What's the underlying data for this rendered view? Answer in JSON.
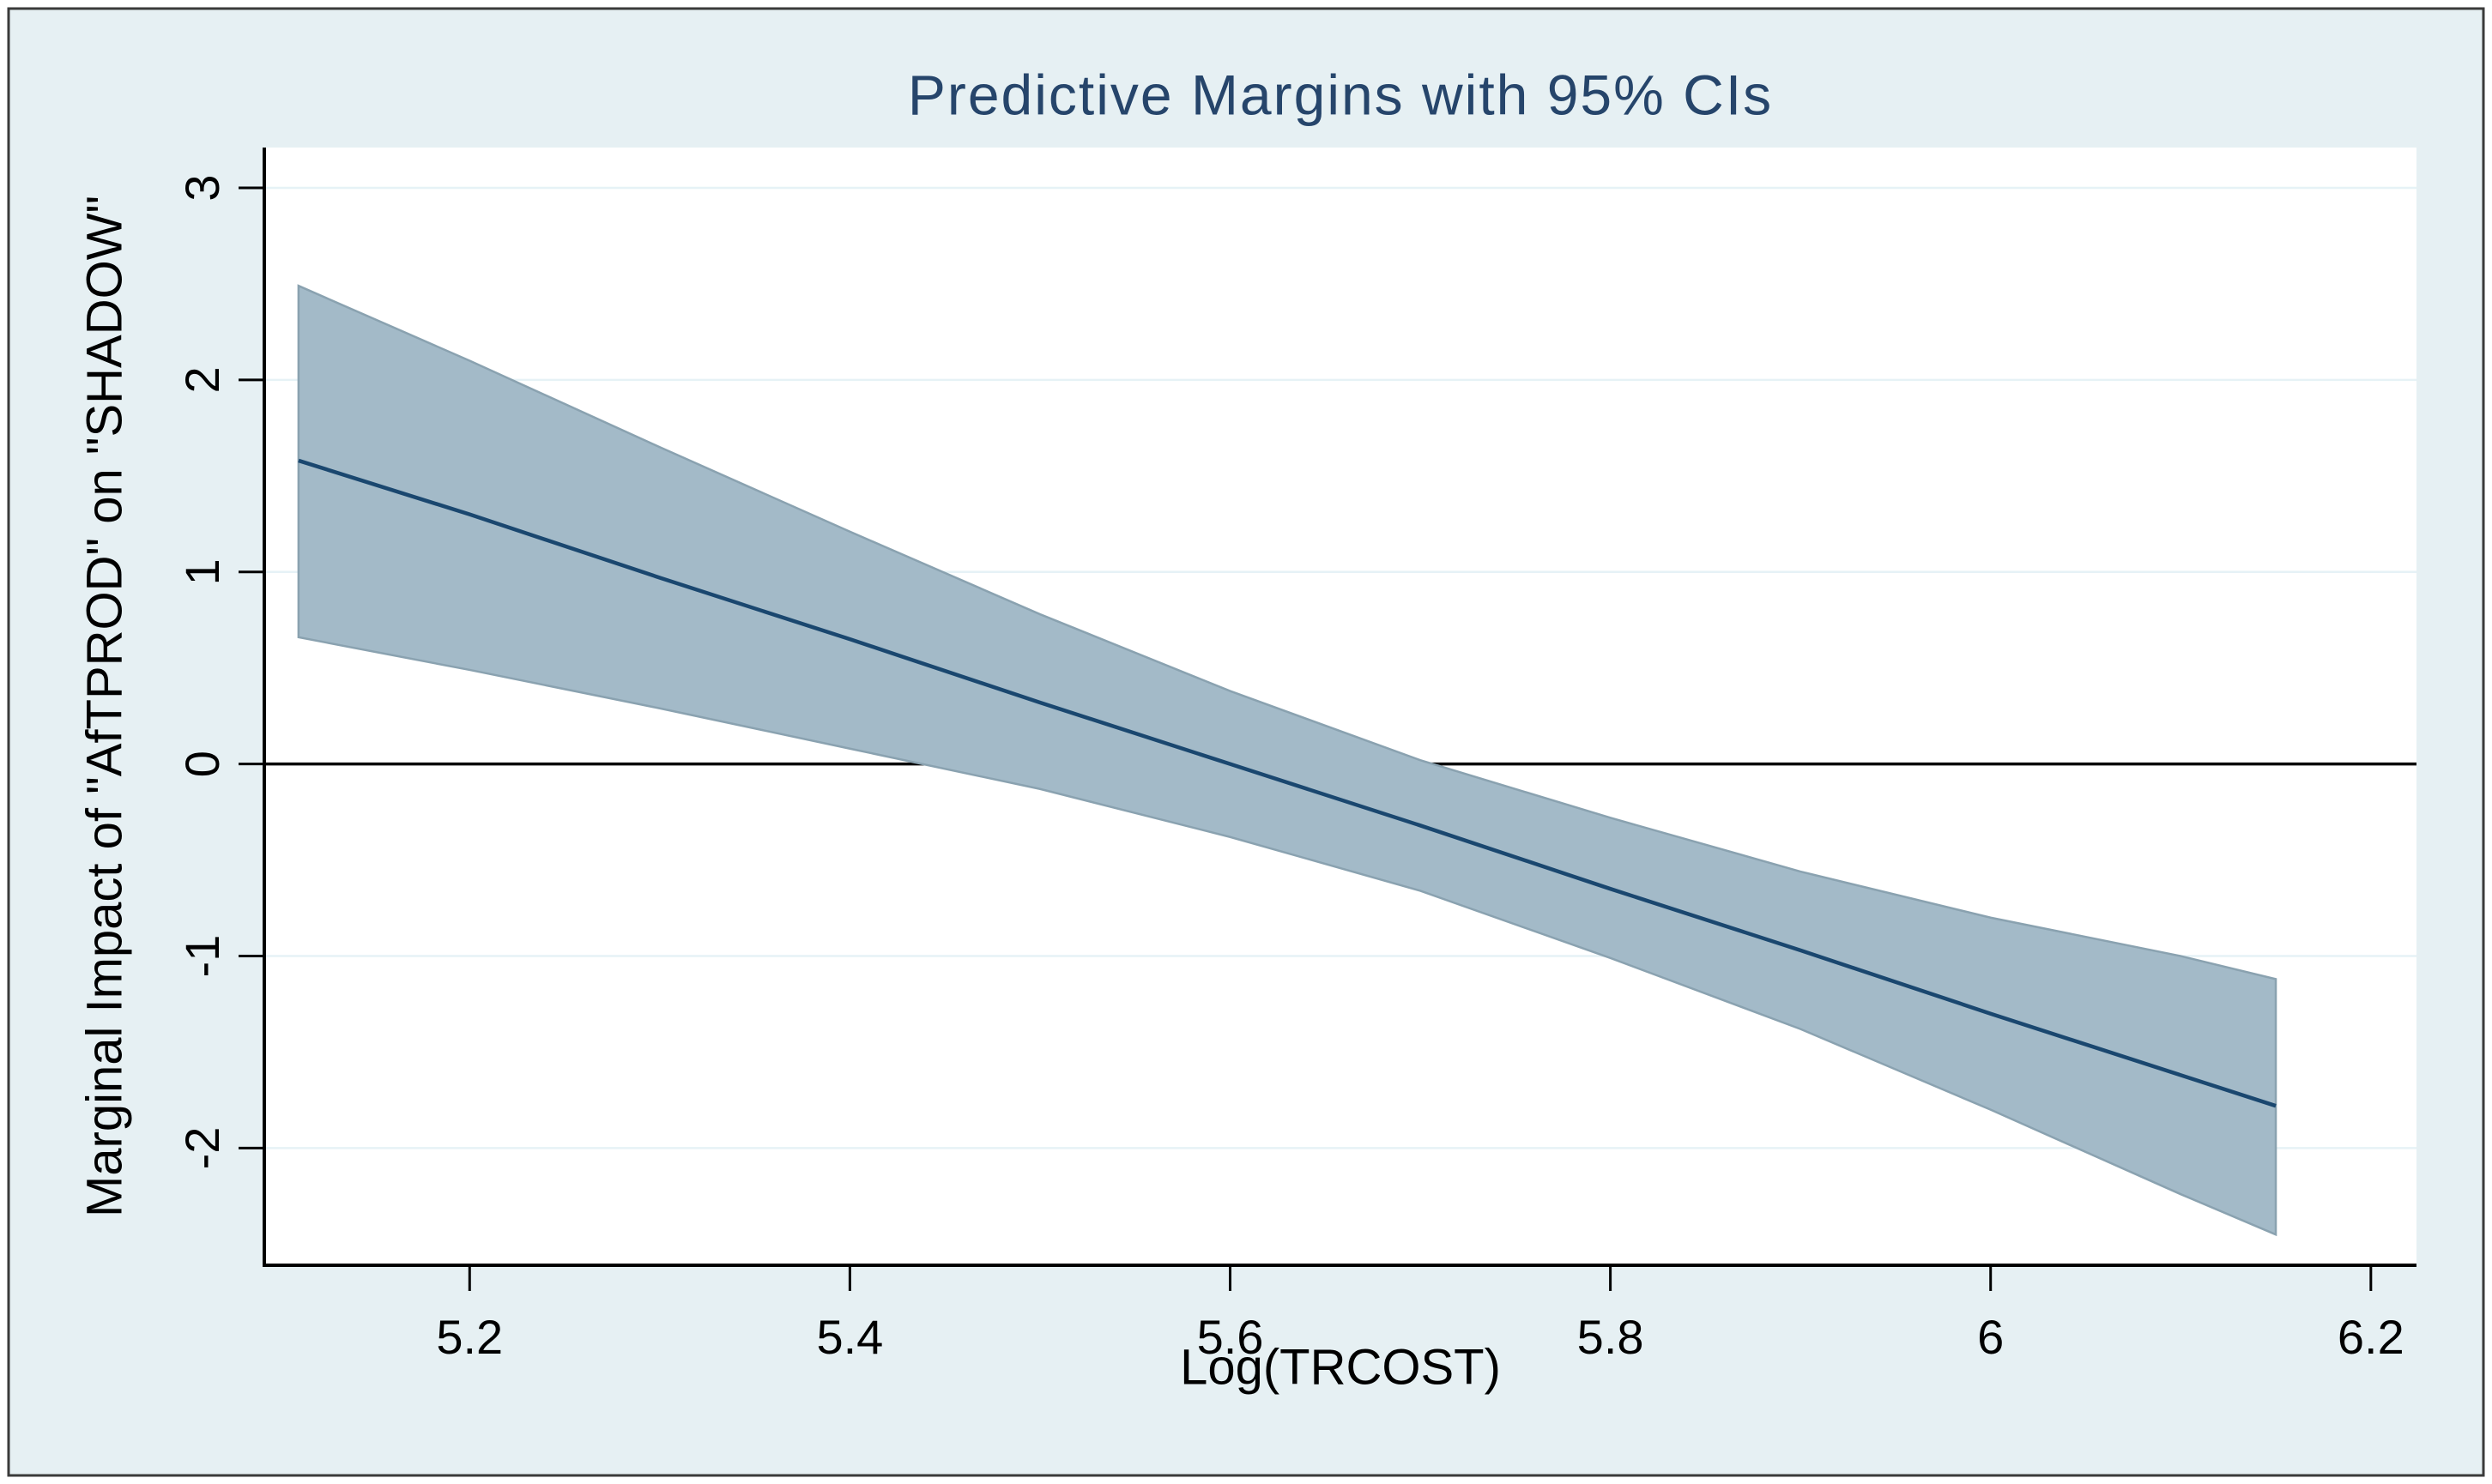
{
  "chart_data": {
    "type": "line",
    "title": "Predictive Margins with 95% CIs",
    "xlabel": "Log(TRCOST)",
    "ylabel": "Marginal Impact of \"AfTPROD\" on \"SHADOW\"",
    "x": [
      5.11,
      5.2,
      5.3,
      5.4,
      5.5,
      5.6,
      5.7,
      5.8,
      5.9,
      6.0,
      6.1,
      6.15
    ],
    "series": [
      {
        "name": "predictive-margin",
        "values": [
          1.58,
          1.3,
          0.97,
          0.65,
          0.32,
          0.0,
          -0.32,
          -0.65,
          -0.97,
          -1.3,
          -1.62,
          -1.78
        ]
      },
      {
        "name": "ci-95-upper",
        "values": [
          2.49,
          2.1,
          1.65,
          1.21,
          0.78,
          0.38,
          0.02,
          -0.28,
          -0.56,
          -0.8,
          -1.0,
          -1.12
        ]
      },
      {
        "name": "ci-95-lower",
        "values": [
          0.66,
          0.49,
          0.29,
          0.08,
          -0.13,
          -0.38,
          -0.66,
          -1.01,
          -1.38,
          -1.8,
          -2.24,
          -2.45
        ]
      }
    ],
    "x_ticks": [
      5.2,
      5.4,
      5.6,
      5.8,
      6,
      6.2
    ],
    "x_tick_labels": [
      "5.2",
      "5.4",
      "5.6",
      "5.8",
      "6",
      "6.2"
    ],
    "y_ticks": [
      3,
      2,
      1,
      0,
      -1,
      -2
    ],
    "y_tick_labels": [
      "3",
      "2",
      "1",
      "0",
      "-1",
      "-2"
    ],
    "xlim": [
      5.092,
      6.224
    ],
    "ylim": [
      -2.61,
      3.21
    ],
    "grid": true,
    "reference_line_y": 0,
    "legend_position": "none",
    "colors": {
      "page_bg": "#ffffff",
      "figure_bg": "#e6f0f3",
      "frame_border": "#3a3a3a",
      "plot_bg": "#ffffff",
      "gridline": "#e6f2f6",
      "ci_band_fill": "#a3bac8",
      "ci_band_edge": "#8aa2b0",
      "margins_line": "#1a476f",
      "zero_line": "#000000",
      "axis": "#000000",
      "title_color": "#26456b",
      "text_color": "#000000"
    }
  }
}
